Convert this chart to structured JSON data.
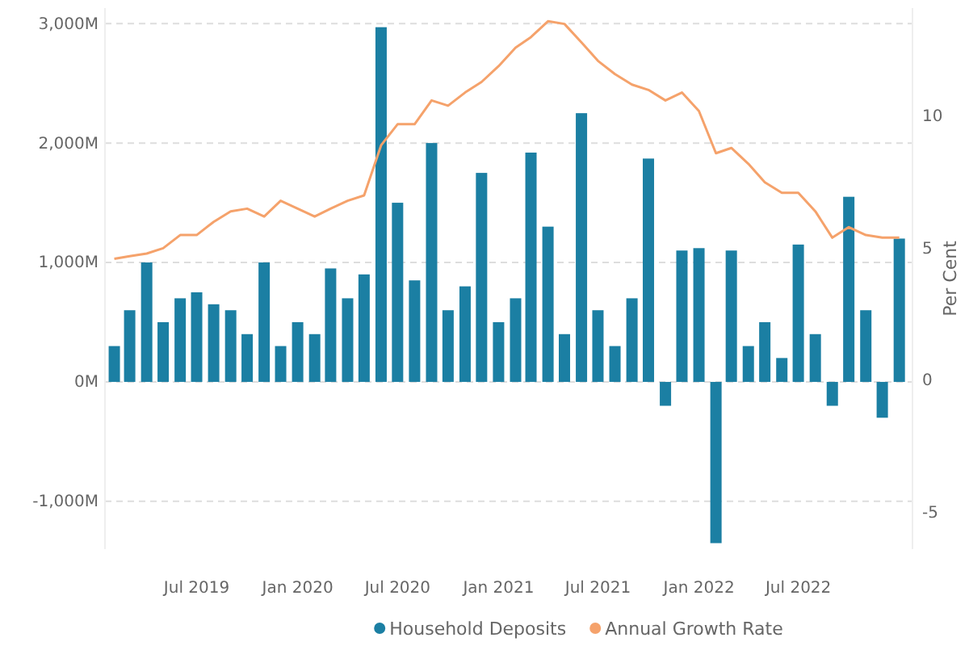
{
  "chart_data": {
    "type": "bar",
    "y2label": "Per Cent",
    "x": [
      "2019-02",
      "2019-03",
      "2019-04",
      "2019-05",
      "2019-06",
      "2019-07",
      "2019-08",
      "2019-09",
      "2019-10",
      "2019-11",
      "2019-12",
      "2020-01",
      "2020-02",
      "2020-03",
      "2020-04",
      "2020-05",
      "2020-06",
      "2020-07",
      "2020-08",
      "2020-09",
      "2020-10",
      "2020-11",
      "2020-12",
      "2021-01",
      "2021-02",
      "2021-03",
      "2021-04",
      "2021-05",
      "2021-06",
      "2021-07",
      "2021-08",
      "2021-09",
      "2021-10",
      "2021-11",
      "2021-12",
      "2022-01",
      "2022-02",
      "2022-03",
      "2022-04",
      "2022-05",
      "2022-06",
      "2022-07",
      "2022-08",
      "2022-09",
      "2022-10",
      "2022-11",
      "2022-12",
      "2023-01"
    ],
    "series": [
      {
        "name": "Household Deposits",
        "color": "#1b7fa3",
        "values": [
          300,
          600,
          1000,
          500,
          700,
          750,
          650,
          600,
          400,
          1000,
          300,
          500,
          400,
          950,
          700,
          900,
          2970,
          1500,
          850,
          2000,
          600,
          800,
          1750,
          500,
          700,
          1920,
          1300,
          400,
          2250,
          600,
          300,
          700,
          1870,
          -200,
          1100,
          1120,
          -1350,
          1100,
          300,
          500,
          200,
          1150,
          400,
          -200,
          1550,
          600,
          -300,
          1200
        ]
      },
      {
        "name": "Annual Growth Rate",
        "type": "line",
        "axis": "y2",
        "color": "#f5a26b",
        "values": [
          4.6,
          4.7,
          4.8,
          5.0,
          5.5,
          5.5,
          6.0,
          6.4,
          6.5,
          6.2,
          6.8,
          6.5,
          6.2,
          6.5,
          6.8,
          7.0,
          8.9,
          9.7,
          9.7,
          10.6,
          10.4,
          10.9,
          11.3,
          11.9,
          12.6,
          13.0,
          13.6,
          13.5,
          12.8,
          12.1,
          11.6,
          11.2,
          11.0,
          10.6,
          10.9,
          10.2,
          8.6,
          8.8,
          8.2,
          7.5,
          7.1,
          7.1,
          6.4,
          5.4,
          5.8,
          5.5,
          5.4,
          5.4
        ]
      }
    ],
    "xlim": [
      "2019-01-15",
      "2023-01-25"
    ],
    "xticks": [
      {
        "value": "2019-07",
        "label": "Jul 2019"
      },
      {
        "value": "2020-01",
        "label": "Jan 2020"
      },
      {
        "value": "2020-07",
        "label": "Jul 2020"
      },
      {
        "value": "2021-01",
        "label": "Jan 2021"
      },
      {
        "value": "2021-07",
        "label": "Jul 2021"
      },
      {
        "value": "2022-01",
        "label": "Jan 2022"
      },
      {
        "value": "2022-07",
        "label": "Jul 2022"
      }
    ],
    "ylim": [
      -1400,
      3130
    ],
    "yticks": [
      {
        "value": -1000,
        "label": "-1,000M"
      },
      {
        "value": 0,
        "label": "0M"
      },
      {
        "value": 1000,
        "label": "1,000M"
      },
      {
        "value": 2000,
        "label": "2,000M"
      },
      {
        "value": 3000,
        "label": "3,000M"
      }
    ],
    "y2lim": [
      -6.4,
      14.1
    ],
    "y2ticks": [
      -5,
      0,
      5,
      10
    ],
    "grid": "y",
    "legend": "bottom",
    "marker": "none",
    "line_style": "solid"
  }
}
